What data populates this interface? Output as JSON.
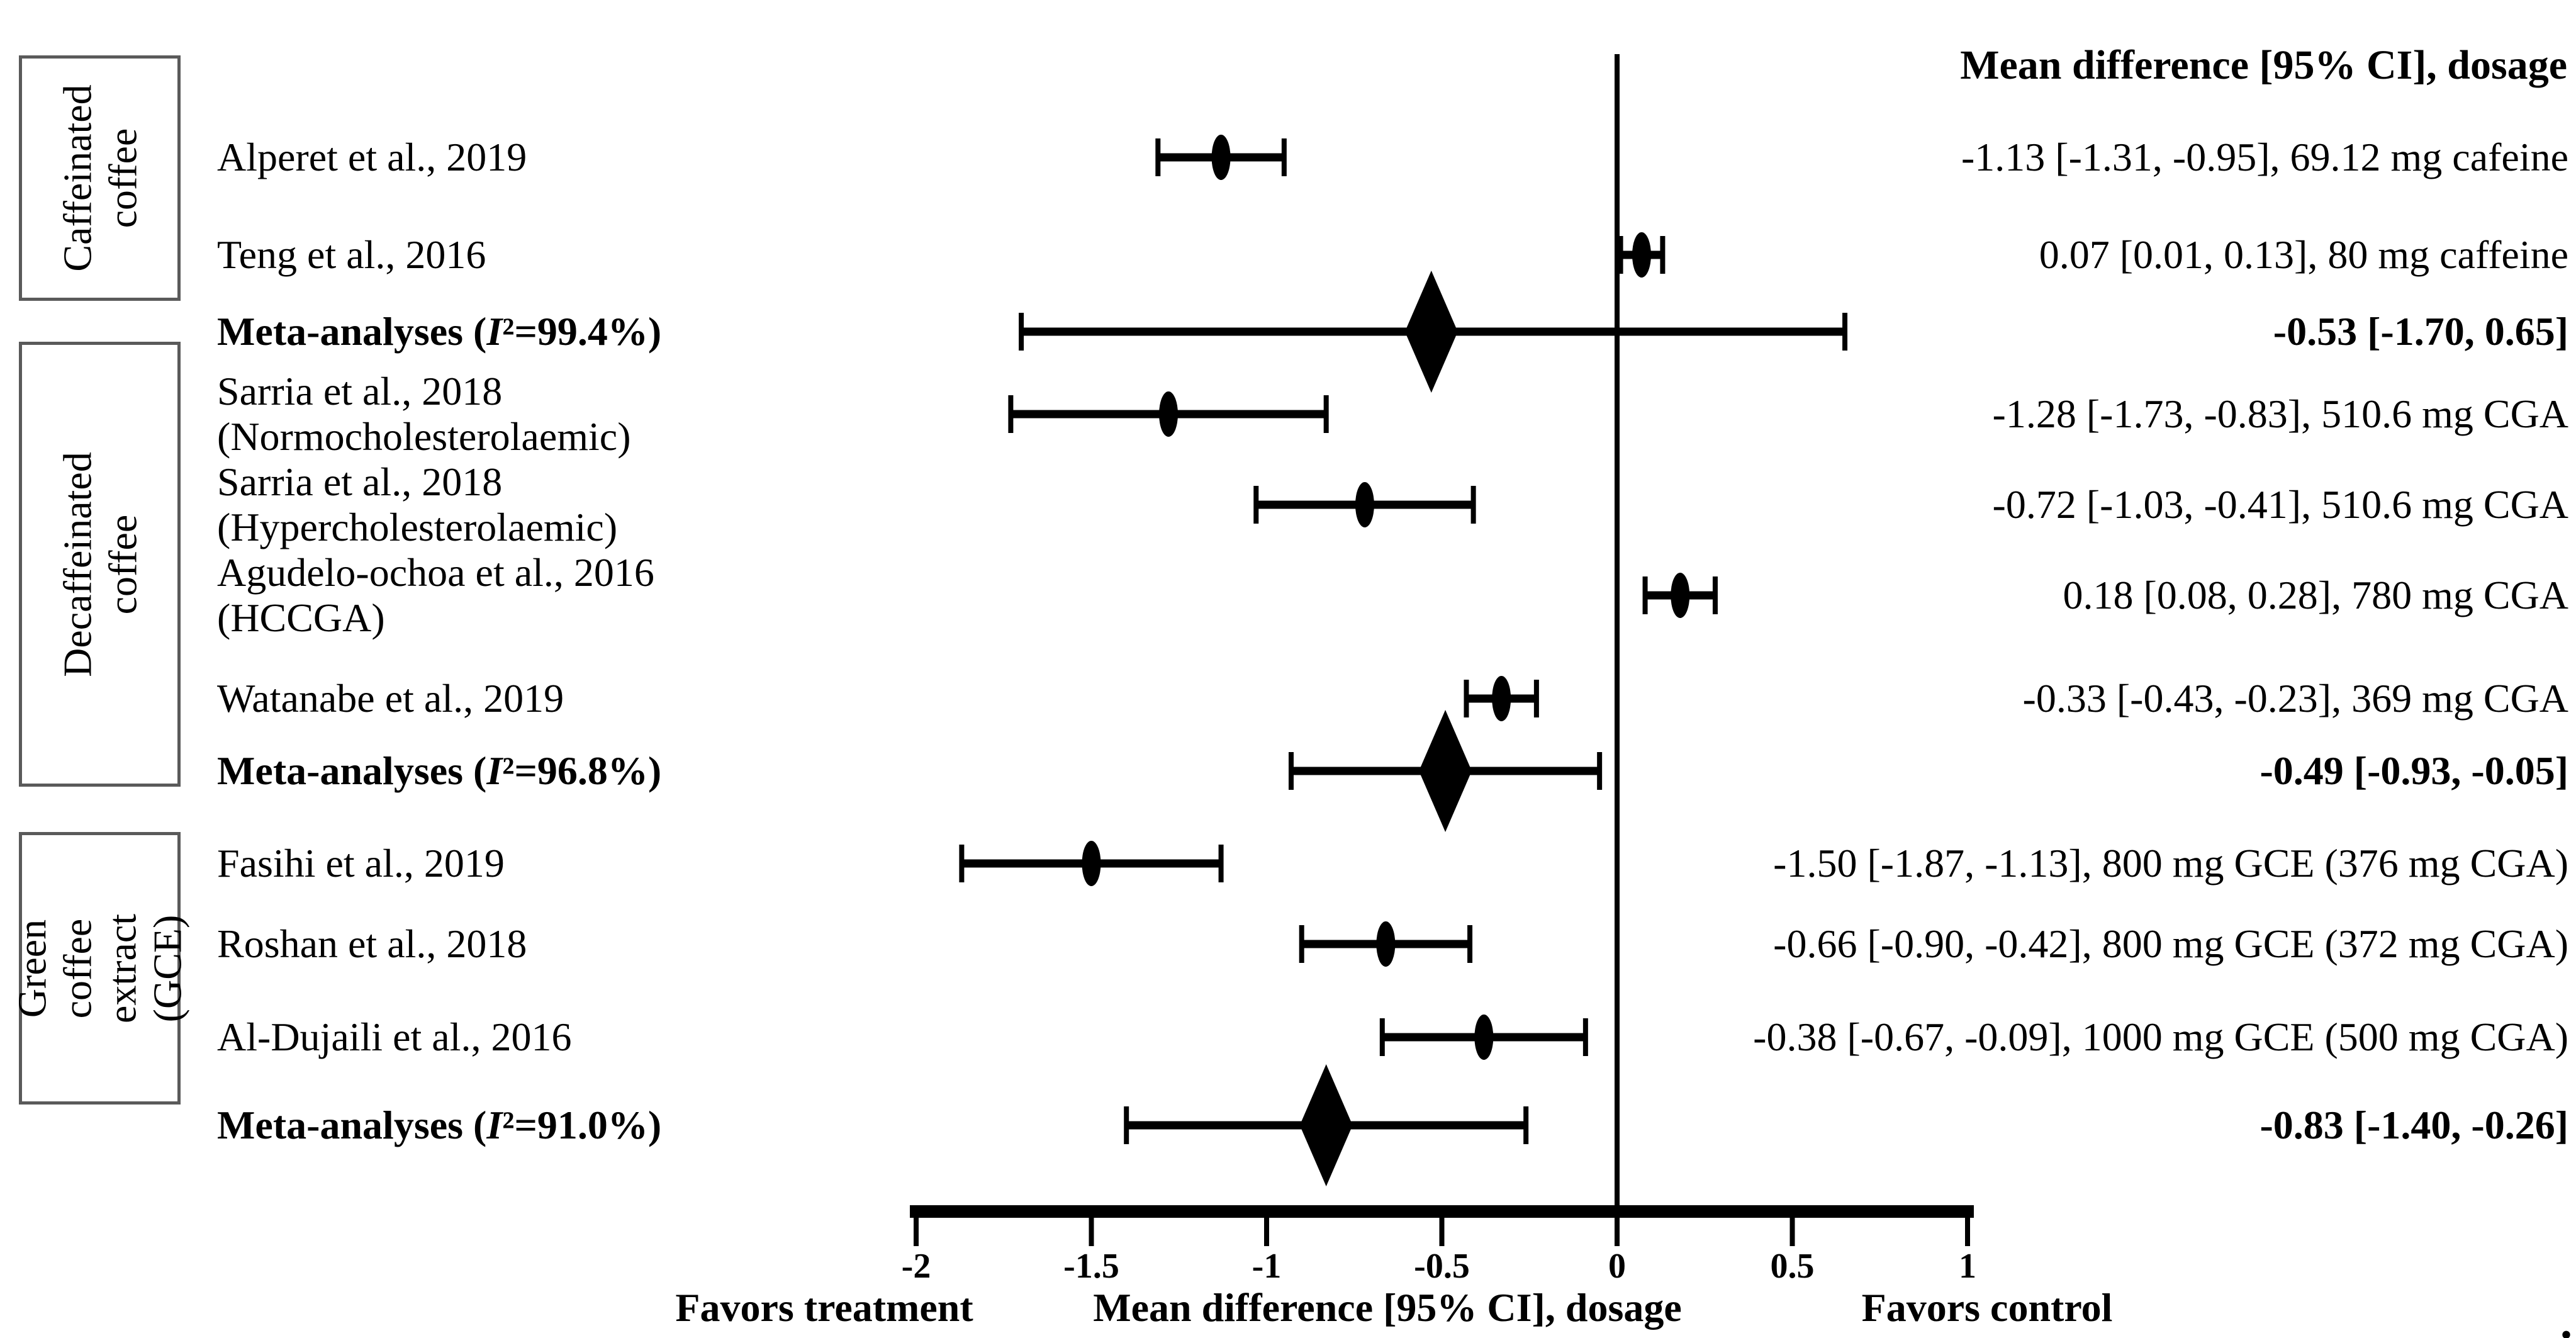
{
  "header": {
    "title": "Mean difference [95% CI], dosage"
  },
  "footer": {
    "favors_treatment": "Favors treatment",
    "axis_caption": "Mean difference [95% CI], dosage",
    "favors_control": "Favors control",
    "stray_period": "."
  },
  "colors": {
    "ink": "#000000",
    "box_border": "#5a5a5a",
    "background": "#ffffff"
  },
  "chart_data": {
    "type": "forest",
    "title": "Mean difference [95% CI], dosage",
    "xlabel": "Mean difference [95% CI], dosage",
    "xlim": [
      -2,
      1
    ],
    "x_ticks": [
      -2,
      -1.5,
      -1,
      -0.5,
      0,
      0.5,
      1
    ],
    "x_tick_labels": [
      "-2",
      "-1.5",
      "-1",
      "-0.5",
      "0",
      "0.5",
      "1"
    ],
    "zero_reference_line": 0,
    "grid": false,
    "groups": [
      {
        "label": "Caffeinated\ncoffee",
        "rows": [
          {
            "label_lines": [
              "Alperet et al., 2019"
            ],
            "marker": "point",
            "mean": -1.13,
            "ci": [
              -1.31,
              -0.95
            ],
            "value_text": "-1.13 [-1.31, -0.95], 69.12 mg cafeine",
            "bold": false
          },
          {
            "label_lines": [
              "Teng et al., 2016"
            ],
            "marker": "point",
            "mean": 0.07,
            "ci": [
              0.01,
              0.13
            ],
            "value_text": "0.07 [0.01, 0.13], 80 mg caffeine",
            "bold": false
          },
          {
            "label_lines": [
              "Meta-analyses (I²=99.4%)"
            ],
            "marker": "diamond",
            "mean": -0.53,
            "ci": [
              -1.7,
              0.65
            ],
            "value_text": "-0.53 [-1.70, 0.65]",
            "bold": true
          }
        ]
      },
      {
        "label": "Decaffeinated coffee",
        "rows": [
          {
            "label_lines": [
              "Sarria et al., 2018",
              "(Normocholesterolaemic)"
            ],
            "marker": "point",
            "mean": -1.28,
            "ci": [
              -1.73,
              -0.83
            ],
            "value_text": "-1.28 [-1.73, -0.83], 510.6 mg CGA",
            "bold": false
          },
          {
            "label_lines": [
              "Sarria et al., 2018",
              "(Hypercholesterolaemic)"
            ],
            "marker": "point",
            "mean": -0.72,
            "ci": [
              -1.03,
              -0.41
            ],
            "value_text": "-0.72 [-1.03, -0.41], 510.6 mg CGA",
            "bold": false
          },
          {
            "label_lines": [
              "Agudelo-ochoa et al., 2016",
              "(HCCGA)"
            ],
            "marker": "point",
            "mean": 0.18,
            "ci": [
              0.08,
              0.28
            ],
            "value_text": "0.18 [0.08, 0.28], 780 mg CGA",
            "bold": false
          },
          {
            "label_lines": [
              "Watanabe et al., 2019"
            ],
            "marker": "point",
            "mean": -0.33,
            "ci": [
              -0.43,
              -0.23
            ],
            "value_text": "-0.33 [-0.43, -0.23], 369 mg CGA",
            "bold": false
          },
          {
            "label_lines": [
              "Meta-analyses (I²=96.8%)"
            ],
            "marker": "diamond",
            "mean": -0.49,
            "ci": [
              -0.93,
              -0.05
            ],
            "value_text": "-0.49 [-0.93, -0.05]",
            "bold": true
          }
        ]
      },
      {
        "label": "Green coffee extract\n(GCE)",
        "rows": [
          {
            "label_lines": [
              "Fasihi et al., 2019"
            ],
            "marker": "point",
            "mean": -1.5,
            "ci": [
              -1.87,
              -1.13
            ],
            "value_text": "-1.50 [-1.87, -1.13], 800 mg GCE (376 mg CGA)",
            "bold": false
          },
          {
            "label_lines": [
              "Roshan et al., 2018"
            ],
            "marker": "point",
            "mean": -0.66,
            "ci": [
              -0.9,
              -0.42
            ],
            "value_text": "-0.66 [-0.90, -0.42], 800 mg GCE (372 mg CGA)",
            "bold": false
          },
          {
            "label_lines": [
              "Al-Dujaili et al., 2016"
            ],
            "marker": "point",
            "mean": -0.38,
            "ci": [
              -0.67,
              -0.09
            ],
            "value_text": "-0.38 [-0.67, -0.09], 1000 mg GCE (500 mg CGA)",
            "bold": false
          },
          {
            "label_lines": [
              "Meta-analyses (I²=91.0%)"
            ],
            "marker": "diamond",
            "mean": -0.83,
            "ci": [
              -1.4,
              -0.26
            ],
            "value_text": "-0.83 [-1.40, -0.26]",
            "bold": true
          }
        ]
      }
    ]
  }
}
